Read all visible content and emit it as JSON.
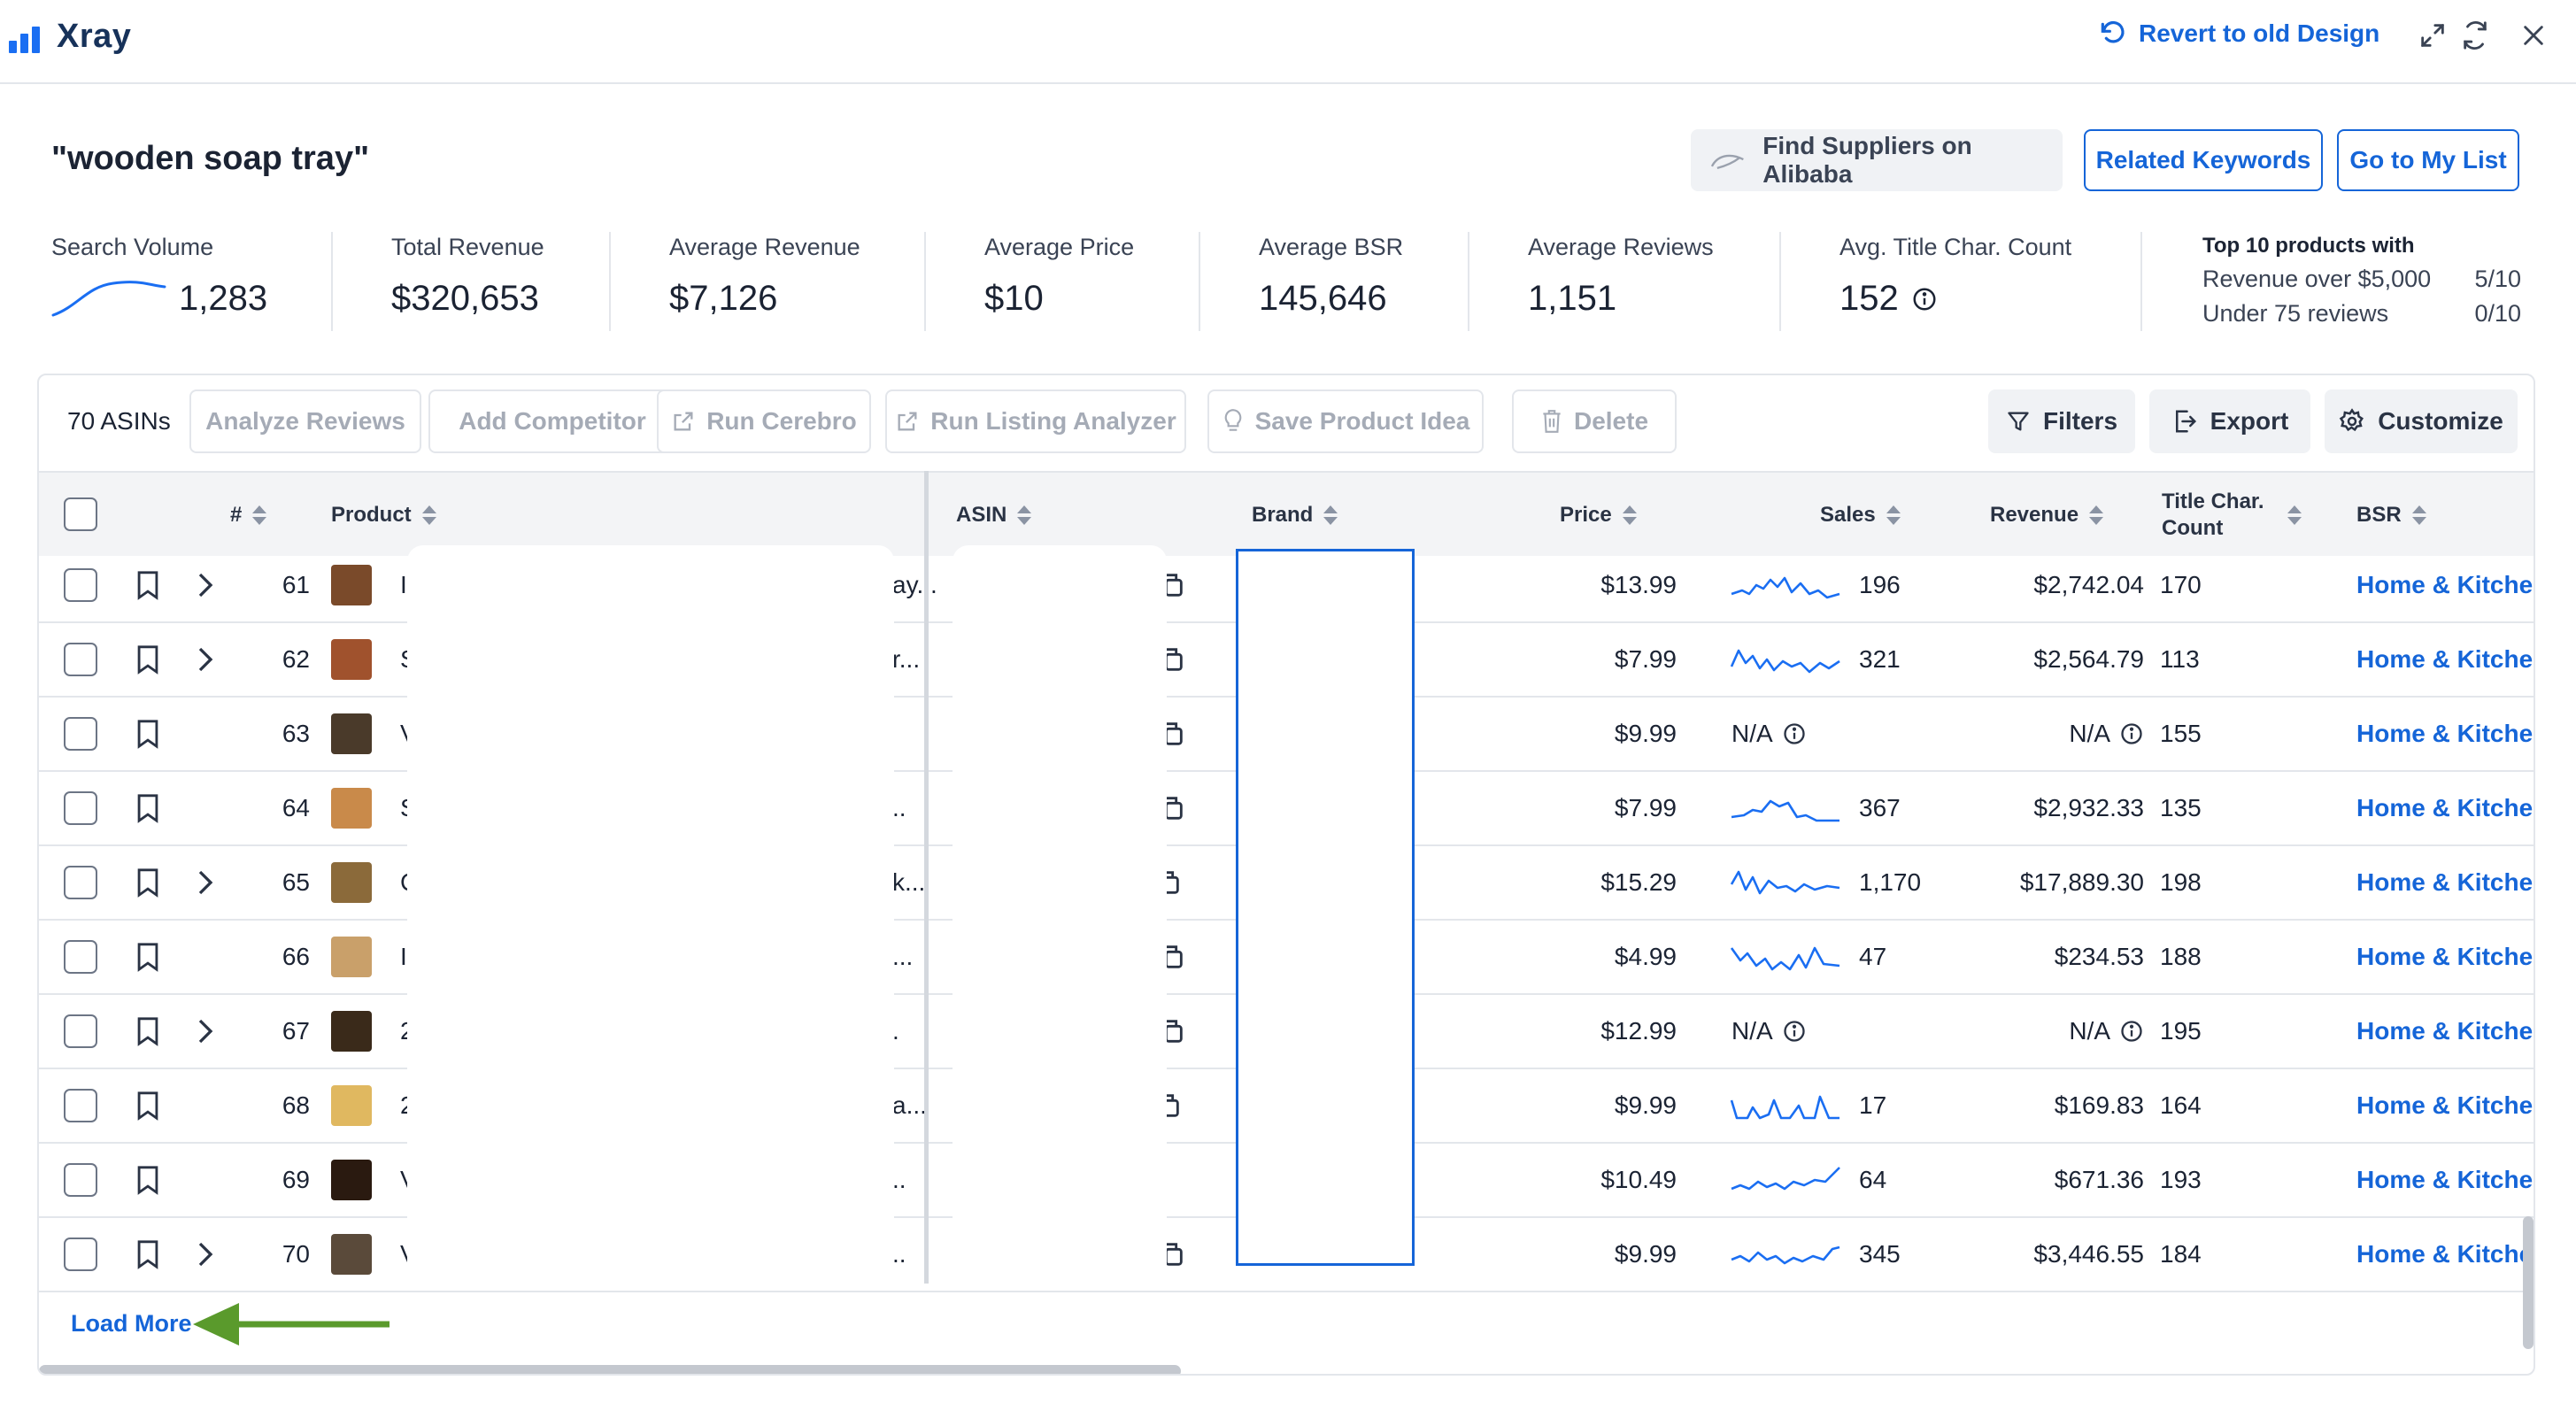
{
  "header": {
    "app_name": "Xray",
    "revert_label": "Revert to old Design",
    "icons": [
      "expand-icon",
      "refresh-icon",
      "close-icon"
    ]
  },
  "title": "\"wooden soap tray\"",
  "actions": {
    "alibaba": "Find Suppliers on Alibaba",
    "related": "Related Keywords",
    "mylist": "Go to My List"
  },
  "stats": {
    "search_volume": {
      "label": "Search Volume",
      "value": "1,283"
    },
    "total_revenue": {
      "label": "Total Revenue",
      "value": "$320,653"
    },
    "avg_revenue": {
      "label": "Average Revenue",
      "value": "$7,126"
    },
    "avg_price": {
      "label": "Average Price",
      "value": "$10"
    },
    "avg_bsr": {
      "label": "Average BSR",
      "value": "145,646"
    },
    "avg_reviews": {
      "label": "Average Reviews",
      "value": "1,151"
    },
    "avg_title": {
      "label": "Avg. Title Char. Count",
      "value": "152"
    },
    "top10": {
      "heading": "Top 10 products with",
      "row1_label": "Revenue over $5,000",
      "row1_value": "5/10",
      "row2_label": "Under 75 reviews",
      "row2_value": "0/10"
    }
  },
  "toolbar": {
    "count": "70 ASINs",
    "analyze": "Analyze Reviews",
    "competitor": "Add Competitor",
    "cerebro": "Run Cerebro",
    "listing": "Run Listing Analyzer",
    "save": "Save Product Idea",
    "delete": "Delete",
    "filters": "Filters",
    "export": "Export",
    "customize": "Customize"
  },
  "columns": {
    "num": "#",
    "product": "Product",
    "asin": "ASIN",
    "brand": "Brand",
    "price": "Price",
    "sales": "Sales",
    "revenue": "Revenue",
    "title1": "Title Char.",
    "title2": "Count",
    "bsr": "BSR"
  },
  "colors": {
    "accent": "#1565d8",
    "arrow": "#5a9a2c"
  },
  "rows": [
    {
      "num": "61",
      "expand": true,
      "p1": "I",
      "p2": "ay...",
      "copy": "partial",
      "price": "$13.99",
      "sales": "196",
      "revenue": "$2,742.04",
      "title": "170",
      "bsr": "Home & Kitche",
      "na": false,
      "thumb": "#7a4a2a"
    },
    {
      "num": "62",
      "expand": true,
      "p1": "S",
      "p2": "r...",
      "copy": "partial",
      "price": "$7.99",
      "sales": "321",
      "revenue": "$2,564.79",
      "title": "113",
      "bsr": "Home & Kitche",
      "na": false,
      "thumb": "#a0522d"
    },
    {
      "num": "63",
      "expand": false,
      "p1": "V",
      "p2": "",
      "copy": "partial",
      "price": "$9.99",
      "sales": "N/A",
      "revenue": "N/A",
      "title": "155",
      "bsr": "Home & Kitche",
      "na": true,
      "thumb": "#4a3a2a"
    },
    {
      "num": "64",
      "expand": false,
      "p1": "S",
      "p2": "..",
      "copy": "partial",
      "price": "$7.99",
      "sales": "367",
      "revenue": "$2,932.33",
      "title": "135",
      "bsr": "Home & Kitche",
      "na": false,
      "thumb": "#c98a4a"
    },
    {
      "num": "65",
      "expand": true,
      "p1": "C",
      "p2": "k...",
      "copy": "full",
      "price": "$15.29",
      "sales": "1,170",
      "revenue": "$17,889.30",
      "title": "198",
      "bsr": "Home & Kitche",
      "na": false,
      "thumb": "#8b6a3a"
    },
    {
      "num": "66",
      "expand": false,
      "p1": "I",
      "p2": "...",
      "copy": "partial",
      "price": "$4.99",
      "sales": "47",
      "revenue": "$234.53",
      "title": "188",
      "bsr": "Home & Kitche",
      "na": false,
      "thumb": "#c9a06a"
    },
    {
      "num": "67",
      "expand": true,
      "p1": "2",
      "p2": ".",
      "copy": "partial",
      "price": "$12.99",
      "sales": "N/A",
      "revenue": "N/A",
      "title": "195",
      "bsr": "Home & Kitche",
      "na": true,
      "thumb": "#3a2a1a"
    },
    {
      "num": "68",
      "expand": false,
      "p1": "2",
      "p2": "a...",
      "copy": "full",
      "price": "$9.99",
      "sales": "17",
      "revenue": "$169.83",
      "title": "164",
      "bsr": "Home & Kitche",
      "na": false,
      "thumb": "#e0b860"
    },
    {
      "num": "69",
      "expand": false,
      "p1": "V",
      "p2": "..",
      "copy": "none",
      "price": "$10.49",
      "sales": "64",
      "revenue": "$671.36",
      "title": "193",
      "bsr": "Home & Kitche",
      "na": false,
      "thumb": "#2a1a10"
    },
    {
      "num": "70",
      "expand": true,
      "p1": "V",
      "p2": "..",
      "copy": "partial",
      "price": "$9.99",
      "sales": "345",
      "revenue": "$3,446.55",
      "title": "184",
      "bsr": "Home & Kitche",
      "na": false,
      "thumb": "#5a4a3a"
    }
  ],
  "load_more": "Load More"
}
